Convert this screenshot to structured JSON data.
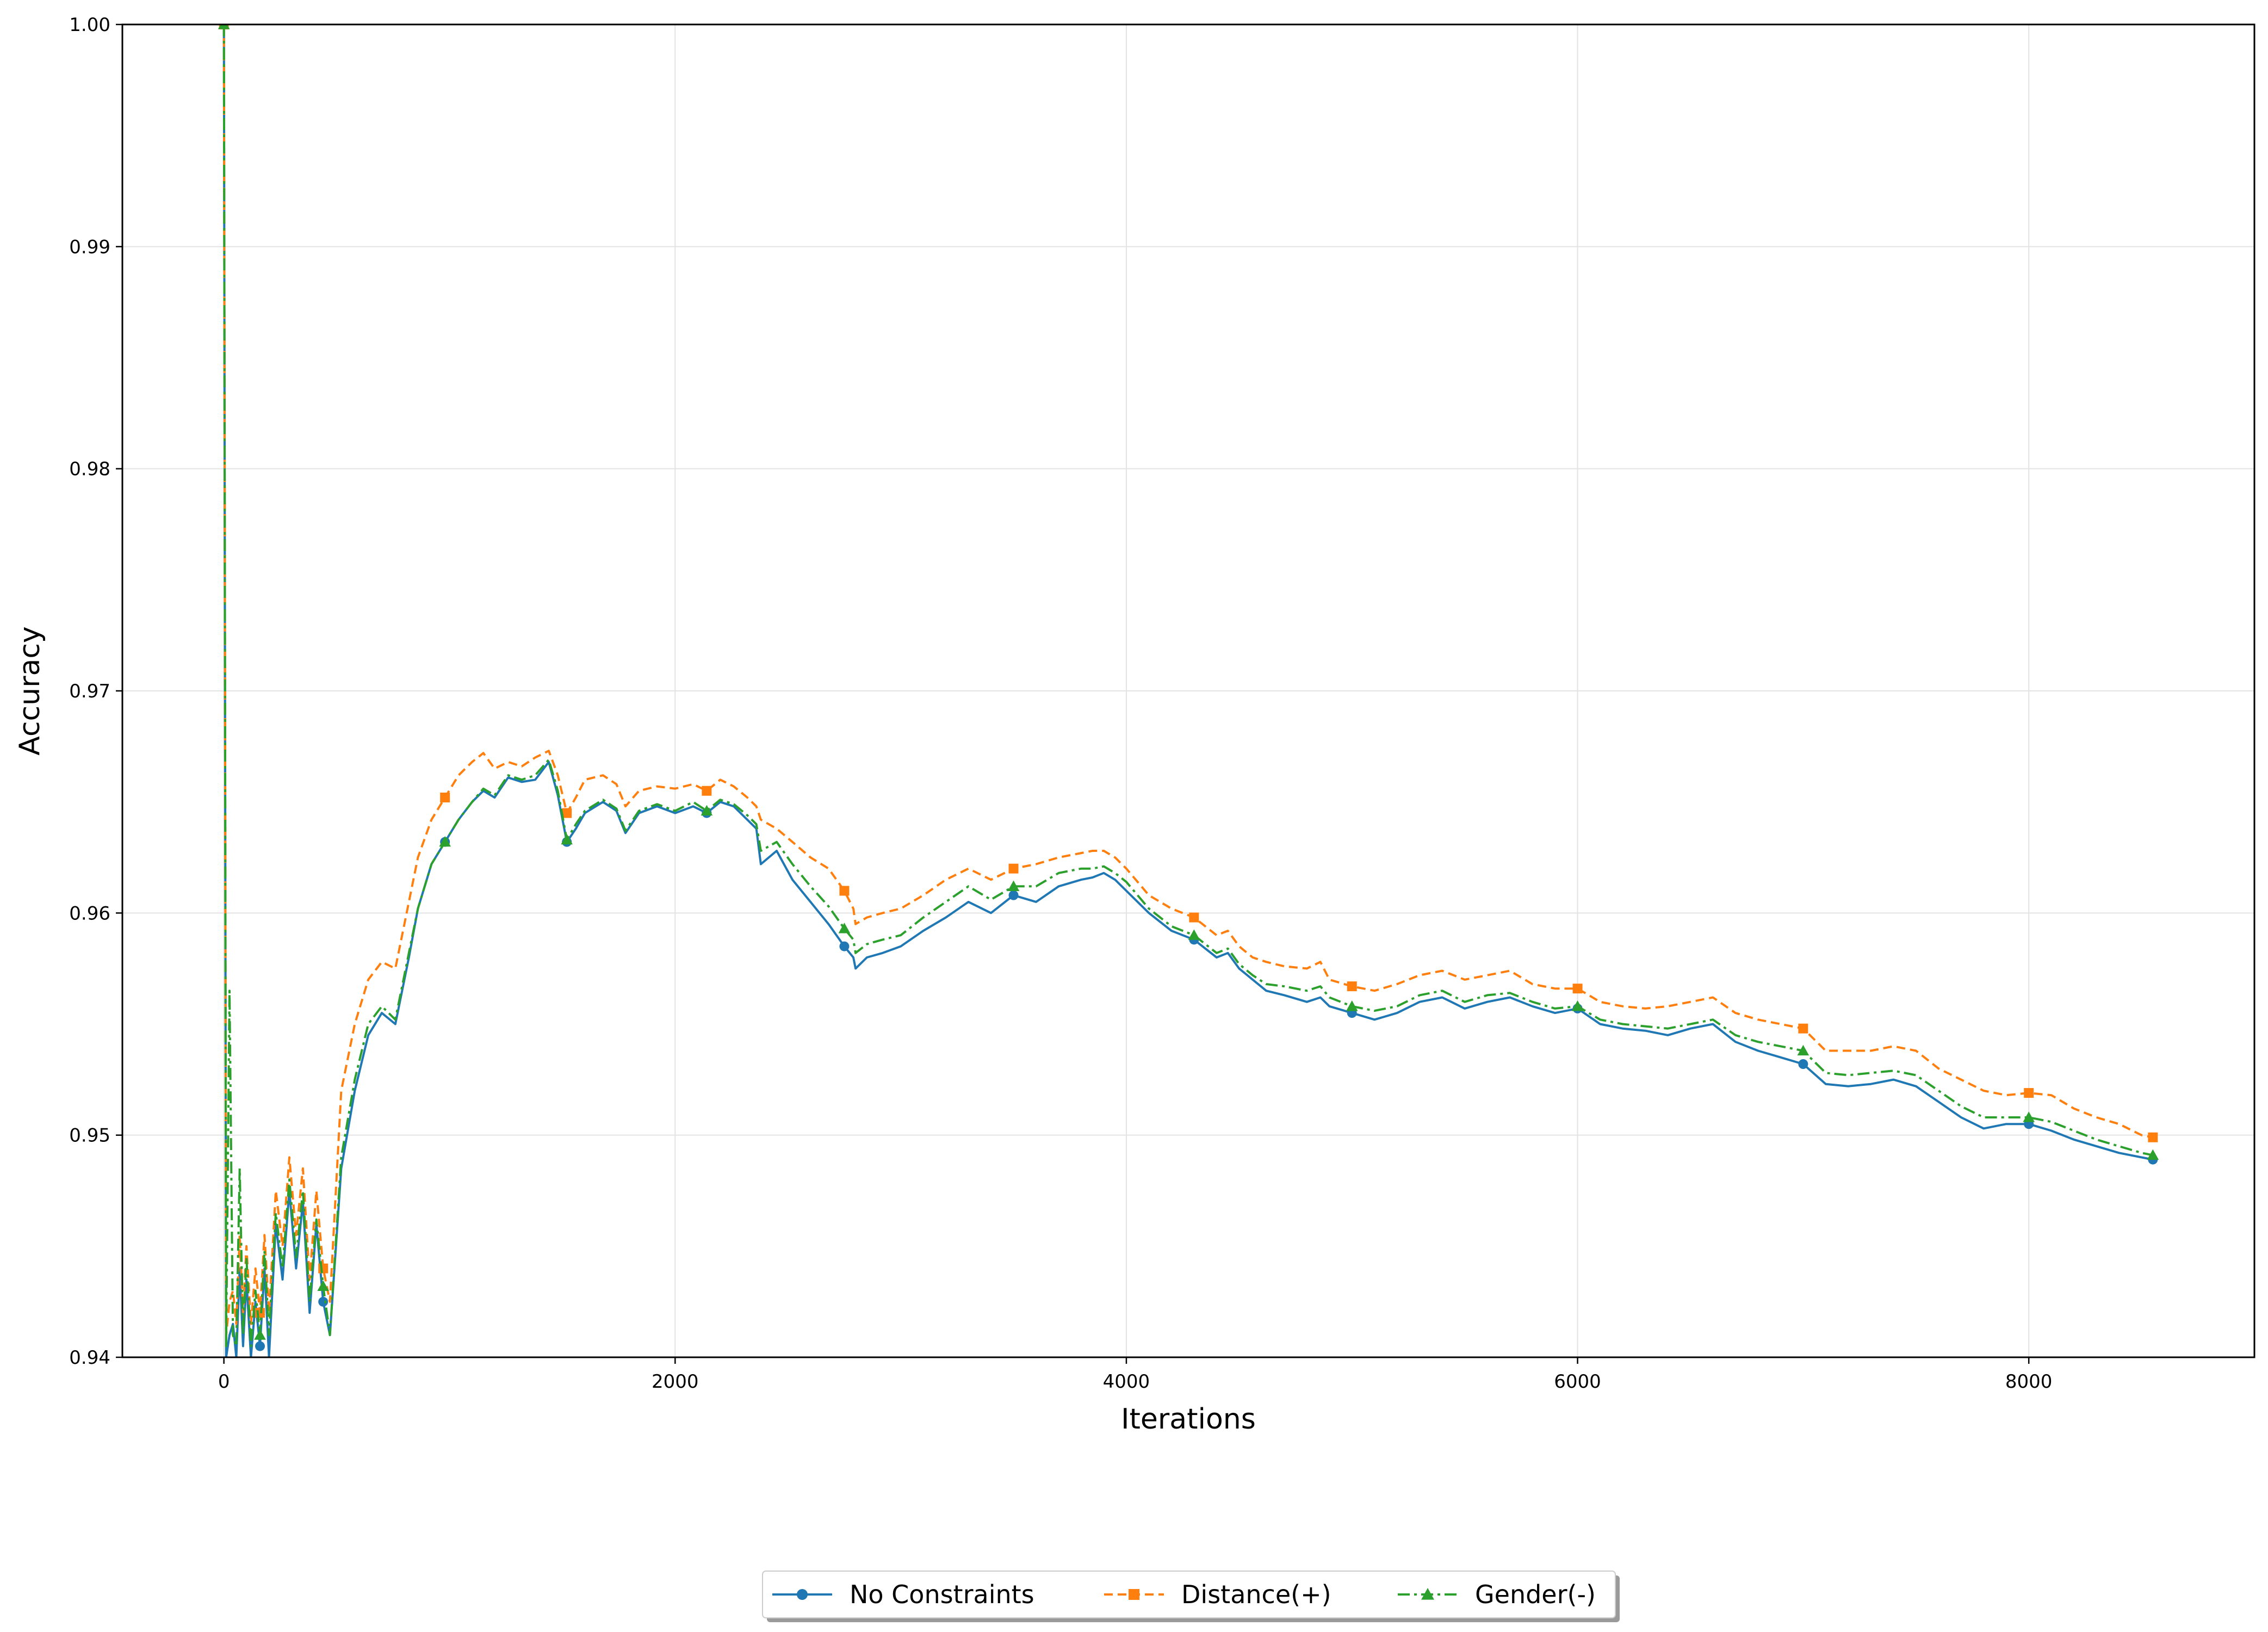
{
  "chart_data": {
    "type": "line",
    "title": "",
    "xlabel": "Iterations",
    "ylabel": "Accuracy",
    "xlim": [
      -450,
      9000
    ],
    "ylim": [
      0.94,
      1.0
    ],
    "xticks": [
      0,
      2000,
      4000,
      6000,
      8000
    ],
    "xtick_labels": [
      "0",
      "2000",
      "4000",
      "6000",
      "8000"
    ],
    "yticks": [
      0.94,
      0.95,
      0.96,
      0.97,
      0.98,
      0.99,
      1.0
    ],
    "ytick_labels": [
      "0.94",
      "0.95",
      "0.96",
      "0.97",
      "0.98",
      "0.99",
      "1.00"
    ],
    "grid": true,
    "legend_position": "bottom-center",
    "series": [
      {
        "name": "No Constraints",
        "color": "#1f77b4",
        "dash": "solid",
        "marker": "circle",
        "x": [
          0,
          10,
          25,
          40,
          55,
          70,
          85,
          100,
          120,
          140,
          160,
          180,
          200,
          230,
          260,
          290,
          320,
          350,
          380,
          410,
          440,
          470,
          520,
          580,
          640,
          700,
          760,
          820,
          860,
          920,
          980,
          1040,
          1100,
          1150,
          1200,
          1260,
          1320,
          1380,
          1440,
          1480,
          1520,
          1560,
          1600,
          1680,
          1740,
          1780,
          1840,
          1920,
          2000,
          2080,
          2140,
          2200,
          2260,
          2320,
          2360,
          2380,
          2450,
          2520,
          2600,
          2680,
          2750,
          2790,
          2800,
          2850,
          2920,
          3000,
          3100,
          3200,
          3300,
          3400,
          3500,
          3600,
          3700,
          3800,
          3850,
          3900,
          3950,
          4000,
          4100,
          4200,
          4300,
          4400,
          4450,
          4500,
          4560,
          4620,
          4700,
          4800,
          4860,
          4900,
          5000,
          5100,
          5200,
          5300,
          5400,
          5500,
          5600,
          5700,
          5800,
          5900,
          6000,
          6100,
          6200,
          6300,
          6400,
          6500,
          6600,
          6700,
          6800,
          6900,
          7000,
          7100,
          7200,
          7300,
          7400,
          7500,
          7600,
          7700,
          7800,
          7900,
          8000,
          8100,
          8200,
          8300,
          8400,
          8500,
          8550
        ],
        "y": [
          1.0,
          0.94,
          0.941,
          0.9415,
          0.94,
          0.944,
          0.9405,
          0.9435,
          0.94,
          0.9425,
          0.9405,
          0.944,
          0.94,
          0.946,
          0.9435,
          0.9475,
          0.944,
          0.947,
          0.942,
          0.946,
          0.9425,
          0.941,
          0.9485,
          0.952,
          0.9545,
          0.9555,
          0.955,
          0.958,
          0.9602,
          0.9622,
          0.9632,
          0.9642,
          0.965,
          0.9655,
          0.9652,
          0.9661,
          0.9659,
          0.966,
          0.9668,
          0.9653,
          0.9632,
          0.9638,
          0.9645,
          0.965,
          0.9646,
          0.9636,
          0.9645,
          0.9648,
          0.9645,
          0.9648,
          0.9645,
          0.965,
          0.9648,
          0.9642,
          0.9638,
          0.9622,
          0.9628,
          0.9615,
          0.9605,
          0.9595,
          0.9585,
          0.958,
          0.9575,
          0.958,
          0.9582,
          0.9585,
          0.9592,
          0.9598,
          0.9605,
          0.96,
          0.9608,
          0.9605,
          0.9612,
          0.9615,
          0.9616,
          0.9618,
          0.9615,
          0.961,
          0.96,
          0.9592,
          0.9588,
          0.958,
          0.9582,
          0.9575,
          0.957,
          0.9565,
          0.9563,
          0.956,
          0.9562,
          0.9558,
          0.9555,
          0.9552,
          0.9555,
          0.956,
          0.9562,
          0.9557,
          0.956,
          0.9562,
          0.9558,
          0.9555,
          0.9557,
          0.955,
          0.9548,
          0.9547,
          0.9545,
          0.9548,
          0.955,
          0.9542,
          0.9538,
          0.9535,
          0.9532,
          0.9523,
          0.9522,
          0.9523,
          0.9525,
          0.9522,
          0.9515,
          0.9508,
          0.9503,
          0.9505,
          0.9505,
          0.9502,
          0.9498,
          0.9495,
          0.9492,
          0.949,
          0.9489
        ]
      },
      {
        "name": "Distance(+)",
        "color": "#ff7f0e",
        "dash": "dashed",
        "marker": "square",
        "x": [
          0,
          10,
          25,
          40,
          55,
          70,
          85,
          100,
          120,
          140,
          160,
          180,
          200,
          230,
          260,
          290,
          320,
          350,
          380,
          410,
          440,
          470,
          520,
          580,
          640,
          700,
          760,
          820,
          860,
          920,
          980,
          1040,
          1100,
          1150,
          1200,
          1260,
          1320,
          1380,
          1440,
          1480,
          1520,
          1560,
          1600,
          1680,
          1740,
          1780,
          1840,
          1920,
          2000,
          2080,
          2140,
          2200,
          2260,
          2320,
          2360,
          2380,
          2450,
          2520,
          2600,
          2680,
          2750,
          2790,
          2800,
          2850,
          2920,
          3000,
          3100,
          3200,
          3300,
          3400,
          3500,
          3600,
          3700,
          3800,
          3850,
          3900,
          3950,
          4000,
          4100,
          4200,
          4300,
          4400,
          4450,
          4500,
          4560,
          4620,
          4700,
          4800,
          4860,
          4900,
          5000,
          5100,
          5200,
          5300,
          5400,
          5500,
          5600,
          5700,
          5800,
          5900,
          6000,
          6100,
          6200,
          6300,
          6400,
          6500,
          6600,
          6700,
          6800,
          6900,
          7000,
          7100,
          7200,
          7300,
          7400,
          7500,
          7600,
          7700,
          7800,
          7900,
          8000,
          8100,
          8200,
          8300,
          8400,
          8500,
          8550
        ],
        "y": [
          1.0,
          0.941,
          0.9425,
          0.943,
          0.9415,
          0.9455,
          0.942,
          0.945,
          0.9415,
          0.944,
          0.942,
          0.9455,
          0.942,
          0.9475,
          0.945,
          0.949,
          0.9455,
          0.9485,
          0.9435,
          0.9475,
          0.944,
          0.9425,
          0.952,
          0.955,
          0.957,
          0.9578,
          0.9575,
          0.9605,
          0.9625,
          0.9642,
          0.9652,
          0.9662,
          0.9668,
          0.9672,
          0.9665,
          0.9668,
          0.9666,
          0.967,
          0.9673,
          0.9662,
          0.9645,
          0.9652,
          0.966,
          0.9662,
          0.9658,
          0.9648,
          0.9655,
          0.9657,
          0.9656,
          0.9658,
          0.9655,
          0.966,
          0.9657,
          0.9652,
          0.9648,
          0.9642,
          0.9638,
          0.9632,
          0.9625,
          0.962,
          0.961,
          0.9602,
          0.9595,
          0.9598,
          0.96,
          0.9602,
          0.9608,
          0.9615,
          0.962,
          0.9615,
          0.962,
          0.9622,
          0.9625,
          0.9627,
          0.9628,
          0.9628,
          0.9625,
          0.962,
          0.9608,
          0.9602,
          0.9598,
          0.959,
          0.9592,
          0.9585,
          0.958,
          0.9578,
          0.9576,
          0.9575,
          0.9578,
          0.957,
          0.9567,
          0.9565,
          0.9568,
          0.9572,
          0.9574,
          0.957,
          0.9572,
          0.9574,
          0.9568,
          0.9566,
          0.9566,
          0.956,
          0.9558,
          0.9557,
          0.9558,
          0.956,
          0.9562,
          0.9555,
          0.9552,
          0.955,
          0.9548,
          0.9538,
          0.9538,
          0.9538,
          0.954,
          0.9538,
          0.953,
          0.9525,
          0.952,
          0.9518,
          0.9519,
          0.9518,
          0.9512,
          0.9508,
          0.9505,
          0.95,
          0.9499
        ]
      },
      {
        "name": "Gender(-)",
        "color": "#2ca02c",
        "dash": "dashdot",
        "marker": "triangle",
        "x": [
          0,
          10,
          25,
          40,
          55,
          70,
          85,
          100,
          120,
          140,
          160,
          180,
          200,
          230,
          260,
          290,
          320,
          350,
          380,
          410,
          440,
          470,
          520,
          580,
          640,
          700,
          760,
          820,
          860,
          920,
          980,
          1040,
          1100,
          1150,
          1200,
          1260,
          1320,
          1380,
          1440,
          1480,
          1520,
          1560,
          1600,
          1680,
          1740,
          1780,
          1840,
          1920,
          2000,
          2080,
          2140,
          2200,
          2260,
          2320,
          2360,
          2380,
          2450,
          2520,
          2600,
          2680,
          2750,
          2790,
          2800,
          2850,
          2920,
          3000,
          3100,
          3200,
          3300,
          3400,
          3500,
          3600,
          3700,
          3800,
          3850,
          3900,
          3950,
          4000,
          4100,
          4200,
          4300,
          4400,
          4450,
          4500,
          4560,
          4620,
          4700,
          4800,
          4860,
          4900,
          5000,
          5100,
          5200,
          5300,
          5400,
          5500,
          5600,
          5700,
          5800,
          5900,
          6000,
          6100,
          6200,
          6300,
          6400,
          6500,
          6600,
          6700,
          6800,
          6900,
          7000,
          7100,
          7200,
          7300,
          7400,
          7500,
          7600,
          7700,
          7800,
          7900,
          8000,
          8100,
          8200,
          8300,
          8400,
          8500,
          8550
        ],
        "y": [
          1.0,
          0.9405,
          0.9565,
          0.941,
          0.9405,
          0.9485,
          0.941,
          0.9445,
          0.9405,
          0.943,
          0.941,
          0.9448,
          0.941,
          0.9465,
          0.944,
          0.948,
          0.9445,
          0.9475,
          0.9425,
          0.9462,
          0.9432,
          0.941,
          0.949,
          0.9525,
          0.955,
          0.9558,
          0.9552,
          0.9582,
          0.9602,
          0.9622,
          0.9632,
          0.9642,
          0.965,
          0.9656,
          0.9653,
          0.9662,
          0.966,
          0.9662,
          0.9669,
          0.9655,
          0.9633,
          0.964,
          0.9646,
          0.9651,
          0.9647,
          0.9637,
          0.9646,
          0.9649,
          0.9646,
          0.965,
          0.9646,
          0.9651,
          0.9649,
          0.9644,
          0.964,
          0.9628,
          0.9632,
          0.9622,
          0.9612,
          0.9603,
          0.9593,
          0.9588,
          0.9582,
          0.9586,
          0.9588,
          0.959,
          0.9598,
          0.9605,
          0.9612,
          0.9606,
          0.9612,
          0.9612,
          0.9618,
          0.962,
          0.962,
          0.9621,
          0.9618,
          0.9614,
          0.9602,
          0.9594,
          0.959,
          0.9582,
          0.9584,
          0.9577,
          0.9572,
          0.9568,
          0.9567,
          0.9565,
          0.9567,
          0.9562,
          0.9558,
          0.9556,
          0.9558,
          0.9563,
          0.9565,
          0.956,
          0.9563,
          0.9564,
          0.956,
          0.9557,
          0.9558,
          0.9552,
          0.955,
          0.9549,
          0.9548,
          0.955,
          0.9552,
          0.9545,
          0.9542,
          0.954,
          0.9538,
          0.9528,
          0.9527,
          0.9528,
          0.9529,
          0.9527,
          0.952,
          0.9513,
          0.9508,
          0.9508,
          0.9508,
          0.9506,
          0.9502,
          0.9498,
          0.9495,
          0.9492,
          0.9491
        ]
      }
    ]
  }
}
